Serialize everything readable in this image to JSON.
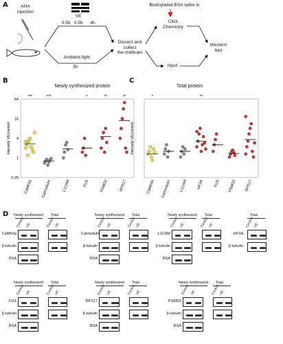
{
  "panels": {
    "a": "A",
    "b": "B",
    "c": "C",
    "d": "D"
  },
  "panelA": {
    "aha": "AHA\ninjection",
    "t1": "0.5h",
    "ve": "VE",
    "t2": "0.5h",
    "t3": "4h",
    "ambient": "Ambient light",
    "ambient_time": "5h",
    "dissect": "Dissect and\ncollect\nthe midbrain",
    "biotin": "Biotinylated BSA spike in",
    "click": "Click\nChemistry",
    "input": "Input",
    "western": "Western\nblot"
  },
  "chart_data": [
    {
      "type": "scatter",
      "title": "Newly synthesized protein",
      "ylabel": "Intensity VE/control",
      "yscale": "log",
      "ylim": [
        0.25,
        64
      ],
      "yticks": [
        "64",
        "16",
        "4",
        "1",
        "0.25"
      ],
      "categories": [
        "CaMKIIa",
        "Calmodulin",
        "L1CAM",
        "FUS",
        "PSMD2",
        "RPS17"
      ],
      "significance": [
        "***",
        "***",
        "",
        "*",
        "**",
        "**"
      ],
      "colors": [
        "#f0e040",
        "#888888",
        "#888888",
        "#d03030",
        "#d03030",
        "#d03030"
      ],
      "points": [
        [
          2.0,
          2.5,
          3.0,
          3.5,
          4.0,
          2.2,
          1.8,
          1.5,
          6.0,
          3.2,
          2.8,
          1.2
        ],
        [
          0.7,
          0.8,
          0.9,
          0.6,
          0.75,
          0.85,
          0.95
        ],
        [
          1.0,
          1.5,
          2.5,
          3.0,
          1.8
        ],
        [
          1.5,
          2.0,
          4.0,
          1.2
        ],
        [
          2.0,
          4.0,
          6.0,
          1.5,
          8.0,
          3.0
        ],
        [
          4.0,
          8.0,
          16.0,
          32.0,
          50.0,
          2.0,
          1.5
        ]
      ],
      "means": [
        2.7,
        0.8,
        1.9,
        2.0,
        4.5,
        14.0
      ]
    },
    {
      "type": "scatter",
      "title": "Total protein",
      "ylabel": "Intensity VE/control",
      "yscale": "log",
      "categories": [
        "CaMKIIa",
        "Calmodulin",
        "L1CAM",
        "eIF3A",
        "FUS",
        "PSMD2",
        "RPS17"
      ],
      "significance": [
        "*",
        "",
        "",
        "**",
        "",
        "",
        ""
      ],
      "colors": [
        "#f0e040",
        "#888888",
        "#888888",
        "#d03030",
        "#d03030",
        "#d03030",
        "#d03030"
      ],
      "points": [
        [
          0.9,
          1.0,
          1.2,
          0.8,
          0.7,
          1.1,
          0.95
        ],
        [
          0.9,
          1.1,
          1.3,
          0.8,
          1.0
        ],
        [
          0.8,
          1.0,
          1.2,
          0.9,
          1.1
        ],
        [
          1.2,
          1.5,
          2.0,
          2.5,
          1.0,
          1.3,
          1.8,
          1.4,
          1.1,
          2.2
        ],
        [
          1.0,
          1.3,
          1.6,
          2.0
        ],
        [
          0.8,
          0.9,
          1.0,
          1.05,
          0.95,
          0.85
        ],
        [
          0.9,
          1.2,
          1.5,
          2.0,
          2.5,
          3.0,
          1.0,
          0.8,
          1.4,
          4.0
        ]
      ],
      "means": [
        0.9,
        1.0,
        1.0,
        1.5,
        1.3,
        0.92,
        1.6
      ]
    }
  ],
  "blots": {
    "newly": "Newly synthesized",
    "total": "Total",
    "control": "Control",
    "ve": "VE",
    "groups": [
      {
        "target": "CaMKIIa",
        "b_tubulin": "β-tubulin",
        "bsa": "BSA"
      },
      {
        "target": "Calmodulin",
        "b_tubulin": "β-tubulin",
        "bsa": "BSA"
      },
      {
        "target": "L1CAM",
        "b_tubulin": "β-tubulin",
        "bsa": "BSA"
      },
      {
        "target": "eIF3A",
        "b_tubulin": "β-tubulin"
      },
      {
        "target": "FUS",
        "b_tubulin": "β-tubulin",
        "bsa": "BSA"
      },
      {
        "target": "RPS17",
        "b_tubulin": "β-tubulin",
        "bsa": "BSA"
      },
      {
        "target": "PSMD2",
        "b_tubulin": "β-tubulin",
        "bsa": "BSA"
      }
    ]
  }
}
